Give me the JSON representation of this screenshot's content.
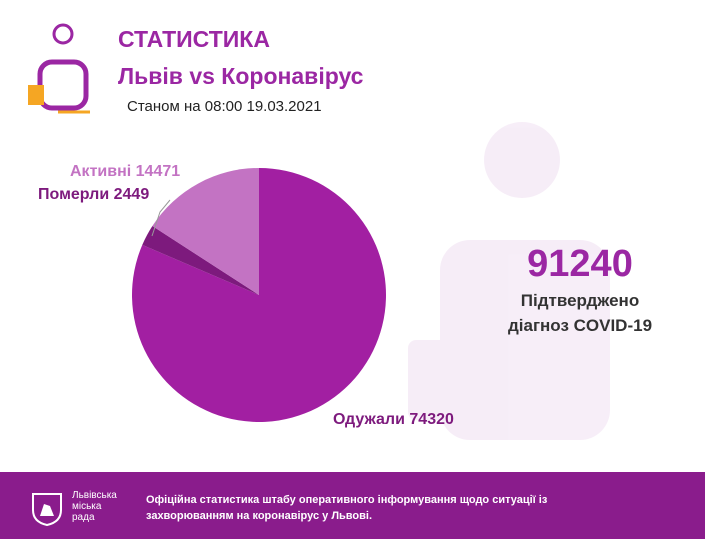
{
  "header": {
    "title": "СТАТИСТИКА",
    "subtitle": "Львів vs Коронавірус",
    "date": "Станом на 08:00 19.03.2021"
  },
  "chart_data": {
    "type": "pie",
    "categories": [
      "Одужали",
      "Померли",
      "Активні"
    ],
    "values": [
      74320,
      2449,
      14471
    ],
    "colors": [
      "#a21fa2",
      "#7d1a7d",
      "#c373c3"
    ]
  },
  "confirmed": {
    "value": 91240,
    "label": "Підтверджено діагноз COVID-19"
  },
  "footer": {
    "logo": [
      "Львівська",
      "міська",
      "рада"
    ],
    "text": "Офіційна статистика штабу оперативного інформування щодо ситуації із захворюванням на коронавірус у Львові."
  }
}
